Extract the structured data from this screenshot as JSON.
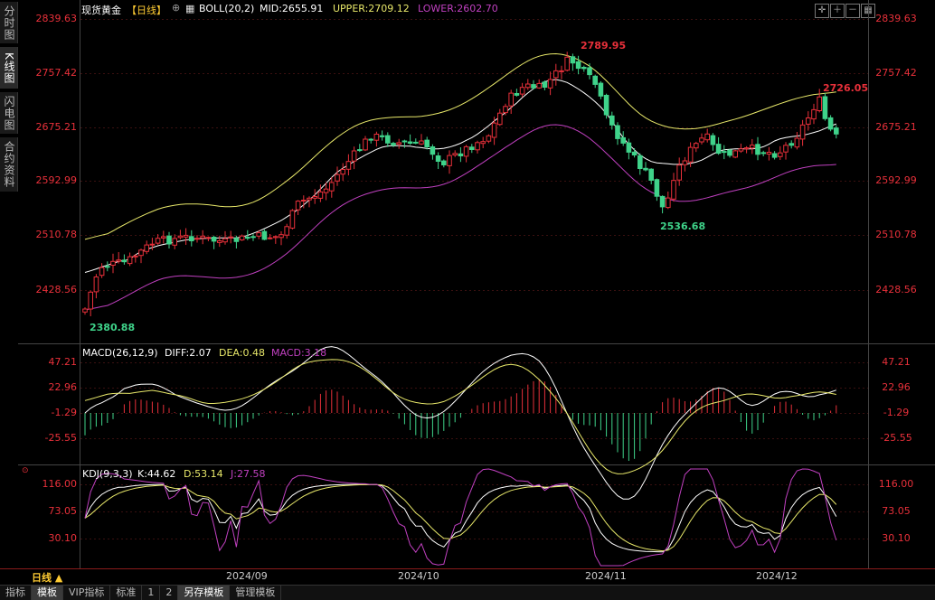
{
  "sidebar": {
    "tabs": [
      "分时图",
      "K线图",
      "闪电图",
      "合约资料"
    ]
  },
  "header": {
    "symbol": "现货黄金",
    "period": "【日线】",
    "indicator": "BOLL(20,2)",
    "mid": "MID:2655.91",
    "upper": "UPPER:2709.12",
    "lower": "LOWER:2602.70"
  },
  "toolbar": {
    "icons": [
      "crosshair-icon",
      "zoom-in-icon",
      "zoom-out-icon",
      "grid-icon"
    ]
  },
  "price_axis": {
    "ticks": [
      "2839.63",
      "2757.42",
      "2675.21",
      "2592.99",
      "2510.78",
      "2428.56"
    ]
  },
  "annotations": {
    "high": "2789.95",
    "high2": "2726.05",
    "low": "2380.88",
    "low2": "2536.68"
  },
  "macd": {
    "label": "MACD(26,12,9)",
    "diff": "DIFF:2.07",
    "dea": "DEA:0.48",
    "macd": "MACD:3.18",
    "ticks": [
      "47.21",
      "22.96",
      "-1.29",
      "-25.55"
    ]
  },
  "kdj": {
    "label": "KDJ(9,3,3)",
    "k": "K:44.62",
    "d": "D:53.14",
    "j": "J:27.58",
    "ticks": [
      "116.00",
      "73.05",
      "30.10"
    ]
  },
  "date_axis": {
    "period_label": "日线 ▲",
    "ticks": [
      "2024/09",
      "2024/10",
      "2024/11",
      "2024/12"
    ]
  },
  "bottom_bar": {
    "items": [
      "指标",
      "模板",
      "VIP指标",
      "标准",
      "1",
      "2",
      "另存模板",
      "管理模板"
    ]
  },
  "colors": {
    "up": "#e8303a",
    "down": "#3fd38a",
    "mid": "#ffffff",
    "upper": "#e8e86a",
    "lower": "#c040c0",
    "axis_red": "#e8303a"
  }
}
